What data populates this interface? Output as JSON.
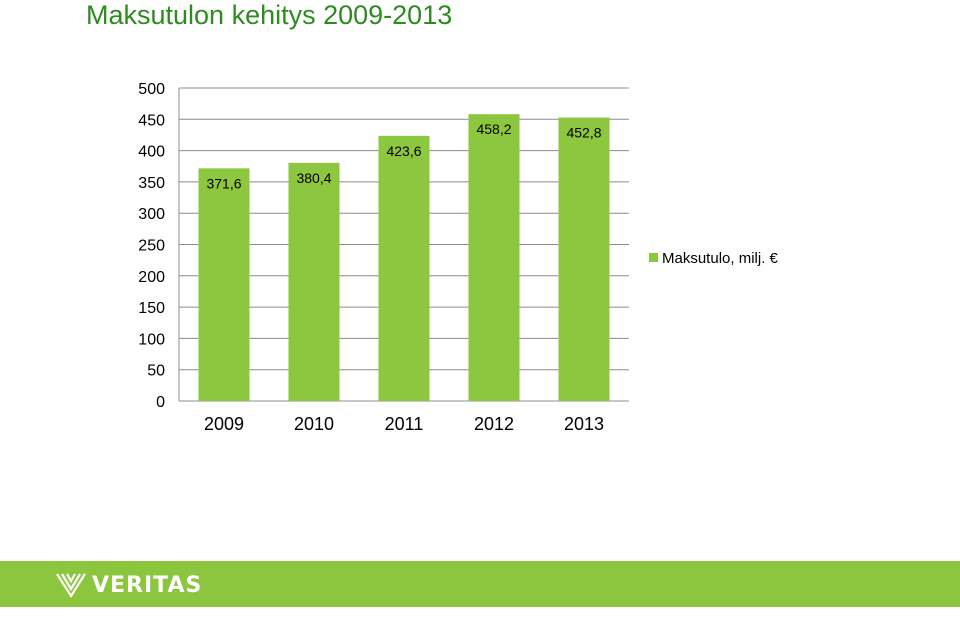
{
  "title": "Maksutulon kehitys 2009-2013",
  "chart_data": {
    "type": "bar",
    "title": "Maksutulon kehitys 2009-2013",
    "categories": [
      "2009",
      "2010",
      "2011",
      "2012",
      "2013"
    ],
    "series": [
      {
        "name": "Maksutulo, milj. €",
        "values": [
          371.6,
          380.4,
          423.6,
          458.2,
          452.8
        ],
        "value_labels": [
          "371,6",
          "380,4",
          "423,6",
          "458,2",
          "452,8"
        ],
        "color": "#8dc63f"
      }
    ],
    "ylim": [
      0,
      500
    ],
    "yticks": [
      0,
      50,
      100,
      150,
      200,
      250,
      300,
      350,
      400,
      450,
      500
    ],
    "grid": true,
    "legend": "right"
  },
  "footer": {
    "brand": "VERITAS",
    "color": "#8cc63f",
    "logo_icon": "veritas-v-icon"
  }
}
